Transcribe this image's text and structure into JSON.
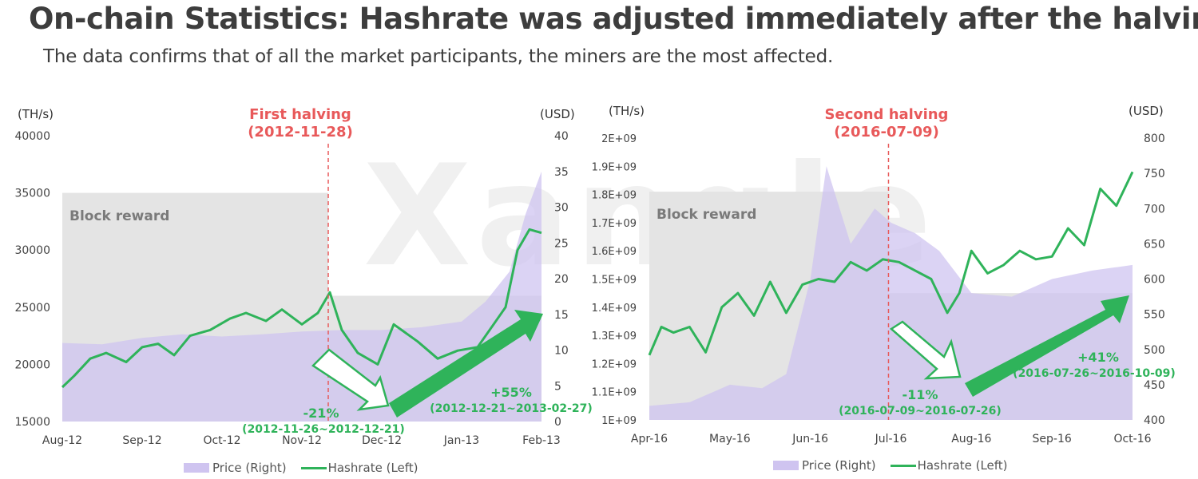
{
  "title": "On-chain Statistics: Hashrate was adjusted immediately after the halving.",
  "subtitle": "The data confirms that of all the market participants, the miners are the most affected.",
  "watermark": "Xangle",
  "colors": {
    "price": "#cfc4f0",
    "hashrate": "#2fb35a",
    "halving": "#e8595a",
    "block_reward": "#e4e4e4"
  },
  "charts": [
    {
      "left_unit": "(TH/s)",
      "right_unit": "(USD)",
      "halving_label": "First halving",
      "halving_date": "(2012-11-28)",
      "block_reward_label": "Block reward",
      "down_pct": "-21%",
      "down_range": "(2012-11-26~2012-12-21)",
      "up_pct": "+55%",
      "up_range": "(2012-12-21~2013-02-27)",
      "legend_price": "Price (Right)",
      "legend_hash": "Hashrate (Left)"
    },
    {
      "left_unit": "(TH/s)",
      "right_unit": "(USD)",
      "halving_label": "Second halving",
      "halving_date": "(2016-07-09)",
      "block_reward_label": "Block reward",
      "down_pct": "-11%",
      "down_range": "(2016-07-09~2016-07-26)",
      "up_pct": "+41%",
      "up_range": "(2016-07-26~2016-10-09)",
      "legend_price": "Price (Right)",
      "legend_hash": "Hashrate (Left)"
    }
  ],
  "chart_data": [
    {
      "type": "area",
      "x_ticks": [
        "Aug-12",
        "Sep-12",
        "Oct-12",
        "Nov-12",
        "Dec-12",
        "Jan-13",
        "Feb-13"
      ],
      "left_ticks": [
        "15000",
        "20000",
        "25000",
        "30000",
        "35000",
        "40000"
      ],
      "right_ticks": [
        "0",
        "5",
        "10",
        "15",
        "20",
        "25",
        "30",
        "35",
        "40"
      ],
      "left_axis": {
        "unit": "(TH/s)",
        "range": [
          15000,
          40000
        ]
      },
      "right_axis": {
        "unit": "(USD)",
        "range": [
          0,
          40
        ]
      },
      "halving": "2012-11-28",
      "block_reward_steps": [
        {
          "until": "2012-11-28",
          "level": 35000
        },
        {
          "until": "2013-02-28",
          "level": 26000
        }
      ],
      "series": [
        {
          "name": "Price (Right)",
          "axis": "right",
          "x": [
            0,
            0.5,
            1,
            1.5,
            2,
            2.5,
            3,
            3.5,
            4,
            4.5,
            5,
            5.3,
            5.6,
            5.8,
            6
          ],
          "values": [
            11,
            10.8,
            11.7,
            12.2,
            11.9,
            12.2,
            12.6,
            12.8,
            12.8,
            13.2,
            14,
            16.8,
            21,
            29,
            35
          ]
        },
        {
          "name": "Hashrate (Left)",
          "axis": "left",
          "x": [
            0,
            0.15,
            0.35,
            0.55,
            0.8,
            1,
            1.2,
            1.4,
            1.6,
            1.85,
            2.1,
            2.3,
            2.55,
            2.75,
            3,
            3.2,
            3.35,
            3.5,
            3.7,
            3.95,
            4.15,
            4.45,
            4.7,
            4.95,
            5.2,
            5.4,
            5.55,
            5.7,
            5.85,
            6
          ],
          "values": [
            18000,
            19000,
            20500,
            21000,
            20200,
            21500,
            21800,
            20800,
            22500,
            23000,
            24000,
            24500,
            23800,
            24800,
            23500,
            24500,
            26300,
            23000,
            21000,
            20000,
            23500,
            22000,
            20500,
            21200,
            21500,
            23500,
            25000,
            30000,
            31800,
            31500
          ]
        }
      ]
    },
    {
      "type": "area",
      "x_ticks": [
        "Apr-16",
        "May-16",
        "Jun-16",
        "Jul-16",
        "Aug-16",
        "Sep-16",
        "Oct-16"
      ],
      "left_ticks": [
        "1E+09",
        "1.1E+09",
        "1.2E+09",
        "1.3E+09",
        "1.4E+09",
        "1.5E+09",
        "1.6E+09",
        "1.7E+09",
        "1.8E+09",
        "1.9E+09",
        "2E+09"
      ],
      "right_ticks": [
        "400",
        "450",
        "500",
        "550",
        "600",
        "650",
        "700",
        "750",
        "800"
      ],
      "left_axis": {
        "unit": "(TH/s)",
        "range": [
          1000000000,
          2000000000
        ]
      },
      "right_axis": {
        "unit": "(USD)",
        "range": [
          400,
          800
        ]
      },
      "halving": "2016-07-09",
      "block_reward_steps": [
        {
          "until": "2016-07-09",
          "level": 1810000000
        },
        {
          "until": "2016-10-09",
          "level": 1450000000
        }
      ],
      "series": [
        {
          "name": "Price (Right)",
          "axis": "right",
          "x": [
            0,
            0.5,
            1,
            1.4,
            1.7,
            2,
            2.2,
            2.5,
            2.8,
            3,
            3.3,
            3.6,
            4,
            4.5,
            5,
            5.5,
            6
          ],
          "values": [
            420,
            425,
            450,
            445,
            465,
            600,
            760,
            650,
            700,
            680,
            665,
            640,
            580,
            575,
            600,
            612,
            620
          ]
        },
        {
          "name": "Hashrate (Left)",
          "axis": "left",
          "x": [
            0,
            0.15,
            0.3,
            0.5,
            0.7,
            0.9,
            1.1,
            1.3,
            1.5,
            1.7,
            1.9,
            2.1,
            2.3,
            2.5,
            2.7,
            2.9,
            3.1,
            3.3,
            3.5,
            3.7,
            3.85,
            4,
            4.2,
            4.4,
            4.6,
            4.8,
            5,
            5.2,
            5.4,
            5.6,
            5.8,
            6
          ],
          "values": [
            1230000000,
            1330000000,
            1310000000,
            1330000000,
            1240000000,
            1400000000,
            1450000000,
            1370000000,
            1490000000,
            1380000000,
            1480000000,
            1500000000,
            1490000000,
            1560000000,
            1530000000,
            1570000000,
            1560000000,
            1530000000,
            1500000000,
            1380000000,
            1450000000,
            1600000000,
            1520000000,
            1550000000,
            1600000000,
            1570000000,
            1580000000,
            1680000000,
            1620000000,
            1820000000,
            1760000000,
            1880000000
          ]
        }
      ]
    }
  ]
}
